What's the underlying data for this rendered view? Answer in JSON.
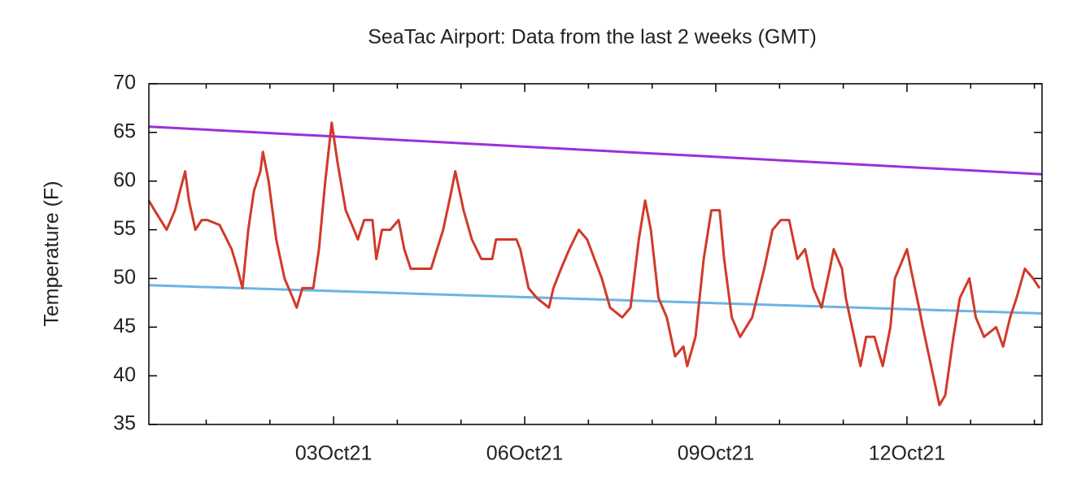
{
  "chart_data": {
    "type": "line",
    "title": "SeaTac Airport:  Data from the last 2 weeks (GMT)",
    "y_label": "Temperature (F)",
    "xlim": [
      0.1,
      14.12
    ],
    "xticks": [
      {
        "value": 3,
        "label": "03Oct21"
      },
      {
        "value": 6,
        "label": "06Oct21"
      },
      {
        "value": 9,
        "label": "09Oct21"
      },
      {
        "value": 12,
        "label": "12Oct21"
      }
    ],
    "xminorticks": [
      1,
      2,
      4,
      5,
      7,
      8,
      10,
      11,
      13,
      14
    ],
    "ylim": [
      35,
      70
    ],
    "yticks": [
      35,
      40,
      45,
      50,
      55,
      60,
      65,
      70
    ],
    "series": [
      {
        "color": "#9b30d9",
        "x": [
          0.1,
          14.12
        ],
        "values": [
          65.6,
          60.7
        ]
      },
      {
        "color": "#6cb4e4",
        "x": [
          0.1,
          14.12
        ],
        "values": [
          49.3,
          46.4
        ]
      },
      {
        "color": "#d03a2a",
        "x": [
          0.1,
          0.19,
          0.38,
          0.51,
          0.67,
          0.73,
          0.83,
          0.93,
          1.02,
          1.21,
          1.4,
          1.49,
          1.57,
          1.66,
          1.75,
          1.85,
          1.89,
          1.98,
          2.1,
          2.23,
          2.36,
          2.42,
          2.51,
          2.68,
          2.77,
          2.87,
          2.97,
          3.06,
          3.19,
          3.32,
          3.38,
          3.48,
          3.61,
          3.67,
          3.76,
          3.89,
          4.02,
          4.11,
          4.21,
          4.53,
          4.72,
          4.85,
          4.91,
          5.04,
          5.17,
          5.32,
          5.49,
          5.55,
          5.87,
          5.93,
          6.06,
          6.19,
          6.38,
          6.45,
          6.57,
          6.7,
          6.85,
          6.98,
          7.21,
          7.34,
          7.53,
          7.66,
          7.79,
          7.89,
          7.98,
          8.1,
          8.23,
          8.36,
          8.49,
          8.55,
          8.68,
          8.81,
          8.93,
          9.06,
          9.13,
          9.25,
          9.38,
          9.57,
          9.76,
          9.89,
          10.02,
          10.15,
          10.28,
          10.4,
          10.53,
          10.66,
          10.79,
          10.85,
          10.98,
          11.04,
          11.17,
          11.27,
          11.36,
          11.49,
          11.62,
          11.74,
          11.81,
          12.0,
          12.06,
          12.19,
          12.25,
          12.38,
          12.51,
          12.6,
          12.73,
          12.83,
          12.98,
          13.08,
          13.21,
          13.4,
          13.51,
          13.62,
          13.72,
          13.85,
          13.98,
          14.08
        ],
        "values": [
          58,
          57,
          55,
          57,
          61,
          58,
          55,
          56,
          56,
          55.5,
          53,
          51,
          49,
          55,
          59,
          61,
          63,
          60,
          54,
          50,
          48,
          47,
          49,
          49,
          53,
          60,
          66,
          62,
          57,
          55,
          54,
          56,
          56,
          52,
          55,
          55,
          56,
          53,
          51,
          51,
          55,
          59,
          61,
          57,
          54,
          52,
          52,
          54,
          54,
          53,
          49,
          48,
          47,
          49,
          51,
          53,
          55,
          54,
          50,
          47,
          46,
          47,
          54,
          58,
          55,
          48,
          46,
          42,
          43,
          41,
          44,
          52,
          57,
          57,
          52,
          46,
          44,
          46,
          51,
          55,
          56,
          56,
          52,
          53,
          49,
          47,
          51,
          53,
          51,
          48,
          44,
          41,
          44,
          44,
          41,
          45,
          50,
          53,
          51,
          47,
          45,
          41,
          37,
          38,
          44,
          48,
          50,
          46,
          44,
          45,
          43,
          46,
          48,
          51,
          50,
          49
        ]
      }
    ]
  }
}
